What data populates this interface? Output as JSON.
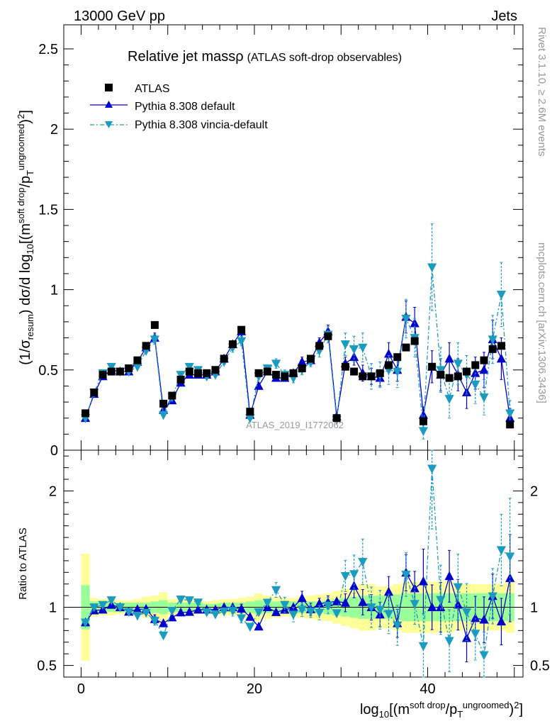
{
  "header": {
    "left": "13000 GeV pp",
    "right": "Jets"
  },
  "side": {
    "rivet": "Rivet 3.1.10, ≥ 2.6M events",
    "mcplots": "mcplots.cern.ch [arXiv:1306.3436]"
  },
  "colors": {
    "atlas": "#000000",
    "default": "#0000cc",
    "vincia": "#1a9bbf",
    "band_inner": "#99ff99",
    "band_outer": "#ffff99"
  },
  "chart_data": {
    "type": "scatter",
    "title": "Relative jet massρ",
    "subtitle": "(ATLAS soft-drop observables)",
    "watermark": "ATLAS_2019_I1772062",
    "ylabel": "(1/σresum) dσ/d log10[(m soft drop/pT ungroomed)2]",
    "ratio_ylabel": "Ratio to ATLAS",
    "xlabel": "log10[(m soft drop/pT ungroomed)2]",
    "xlim": [
      -2,
      51
    ],
    "ylim": [
      0,
      2.65
    ],
    "ratio_ylim": [
      0.4,
      2.35
    ],
    "x_ticks": [
      0,
      20,
      40
    ],
    "y_ticks": [
      0,
      0.5,
      1,
      1.5,
      2,
      2.5
    ],
    "ratio_y_ticks": [
      0.5,
      1,
      2
    ],
    "legend": [
      "ATLAS",
      "Pythia 8.308 default",
      "Pythia 8.308 vincia-default"
    ],
    "legend_position": "top-left",
    "x": [
      0.5,
      1.5,
      2.5,
      3.5,
      4.5,
      5.5,
      6.5,
      7.5,
      8.5,
      9.5,
      10.5,
      11.5,
      12.5,
      13.5,
      14.5,
      15.5,
      16.5,
      17.5,
      18.5,
      19.5,
      20.5,
      21.5,
      22.5,
      23.5,
      24.5,
      25.5,
      26.5,
      27.5,
      28.5,
      29.5,
      30.5,
      31.5,
      32.5,
      33.5,
      34.5,
      35.5,
      36.5,
      37.5,
      38.5,
      39.5,
      40.5,
      41.5,
      42.5,
      43.5,
      44.5,
      45.5,
      46.5,
      47.5,
      48.5,
      49.5
    ],
    "series": [
      {
        "name": "ATLAS",
        "values": [
          0.23,
          0.36,
          0.47,
          0.49,
          0.49,
          0.51,
          0.56,
          0.65,
          0.78,
          0.29,
          0.34,
          0.44,
          0.49,
          0.48,
          0.48,
          0.5,
          0.57,
          0.66,
          0.75,
          0.24,
          0.48,
          0.49,
          0.47,
          0.46,
          0.48,
          0.51,
          0.57,
          0.65,
          0.71,
          0.2,
          0.52,
          0.49,
          0.46,
          0.46,
          0.48,
          0.53,
          0.58,
          0.64,
          0.68,
          0.18,
          0.52,
          0.47,
          0.45,
          0.46,
          0.49,
          0.53,
          0.56,
          0.63,
          0.65,
          0.16
        ]
      },
      {
        "name": "Pythia 8.308 default",
        "values": [
          0.2,
          0.35,
          0.46,
          0.5,
          0.49,
          0.49,
          0.55,
          0.64,
          0.7,
          0.25,
          0.31,
          0.42,
          0.47,
          0.47,
          0.47,
          0.49,
          0.57,
          0.66,
          0.74,
          0.22,
          0.4,
          0.49,
          0.45,
          0.45,
          0.48,
          0.55,
          0.56,
          0.67,
          0.74,
          0.21,
          0.54,
          0.58,
          0.48,
          0.46,
          0.45,
          0.6,
          0.5,
          0.83,
          0.79,
          0.22,
          0.52,
          0.47,
          0.57,
          0.47,
          0.36,
          0.48,
          0.5,
          0.69,
          0.57,
          0.2
        ],
        "errors": [
          0.01,
          0.01,
          0.02,
          0.02,
          0.02,
          0.02,
          0.02,
          0.02,
          0.03,
          0.01,
          0.01,
          0.01,
          0.02,
          0.02,
          0.02,
          0.02,
          0.02,
          0.02,
          0.03,
          0.01,
          0.02,
          0.02,
          0.02,
          0.02,
          0.02,
          0.03,
          0.03,
          0.03,
          0.04,
          0.02,
          0.04,
          0.05,
          0.05,
          0.05,
          0.05,
          0.07,
          0.07,
          0.1,
          0.1,
          0.05,
          0.1,
          0.1,
          0.1,
          0.1,
          0.1,
          0.1,
          0.11,
          0.12,
          0.13,
          0.06
        ]
      },
      {
        "name": "Pythia 8.308 vincia-default",
        "values": [
          0.2,
          0.36,
          0.48,
          0.52,
          0.49,
          0.49,
          0.52,
          0.62,
          0.69,
          0.22,
          0.33,
          0.47,
          0.52,
          0.5,
          0.46,
          0.47,
          0.55,
          0.64,
          0.68,
          0.2,
          0.46,
          0.51,
          0.54,
          0.47,
          0.45,
          0.5,
          0.55,
          0.62,
          0.72,
          0.19,
          0.66,
          0.63,
          0.64,
          0.46,
          0.47,
          0.5,
          0.49,
          0.82,
          0.7,
          0.12,
          1.14,
          0.5,
          0.32,
          0.54,
          0.47,
          0.41,
          0.33,
          0.69,
          0.97,
          0.23
        ],
        "errors": [
          0.01,
          0.01,
          0.02,
          0.02,
          0.02,
          0.02,
          0.02,
          0.02,
          0.03,
          0.01,
          0.01,
          0.02,
          0.02,
          0.02,
          0.02,
          0.02,
          0.02,
          0.03,
          0.03,
          0.01,
          0.02,
          0.02,
          0.03,
          0.03,
          0.03,
          0.03,
          0.03,
          0.04,
          0.05,
          0.02,
          0.07,
          0.08,
          0.09,
          0.08,
          0.08,
          0.09,
          0.1,
          0.12,
          0.12,
          0.05,
          0.27,
          0.14,
          0.12,
          0.13,
          0.12,
          0.12,
          0.11,
          0.15,
          0.2,
          0.08
        ]
      }
    ],
    "band_inner_rel": [
      0.19,
      0.05,
      0.04,
      0.04,
      0.04,
      0.04,
      0.04,
      0.04,
      0.05,
      0.06,
      0.04,
      0.04,
      0.04,
      0.04,
      0.03,
      0.03,
      0.04,
      0.04,
      0.04,
      0.05,
      0.06,
      0.05,
      0.05,
      0.05,
      0.05,
      0.05,
      0.05,
      0.05,
      0.06,
      0.07,
      0.08,
      0.09,
      0.1,
      0.1,
      0.1,
      0.1,
      0.11,
      0.12,
      0.12,
      0.12,
      0.12,
      0.12,
      0.12,
      0.12,
      0.12,
      0.12,
      0.12,
      0.12,
      0.12,
      0.12
    ],
    "band_outer_rel": [
      0.46,
      0.08,
      0.07,
      0.07,
      0.06,
      0.06,
      0.07,
      0.09,
      0.1,
      0.13,
      0.07,
      0.07,
      0.07,
      0.06,
      0.05,
      0.06,
      0.07,
      0.07,
      0.08,
      0.09,
      0.12,
      0.1,
      0.09,
      0.08,
      0.08,
      0.09,
      0.1,
      0.11,
      0.12,
      0.14,
      0.16,
      0.18,
      0.2,
      0.2,
      0.18,
      0.18,
      0.2,
      0.22,
      0.22,
      0.22,
      0.22,
      0.22,
      0.22,
      0.2,
      0.2,
      0.2,
      0.2,
      0.2,
      0.2,
      0.22
    ]
  }
}
